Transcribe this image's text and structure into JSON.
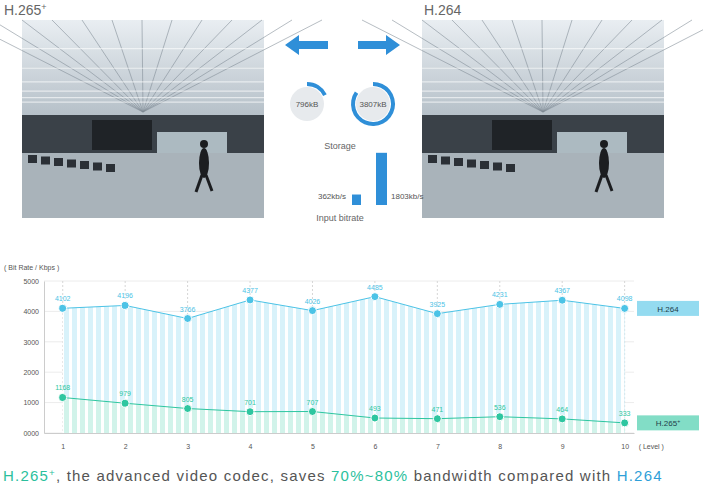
{
  "images": [
    {
      "label": "H.265+"
    },
    {
      "label": "H.264"
    }
  ],
  "chart_data": [
    {
      "type": "gauge",
      "title": "Storage",
      "values": [
        796,
        3807
      ],
      "value_labels": [
        "796kB",
        "3807kB"
      ],
      "ylim": [
        0,
        4500
      ],
      "color": "#2f8fd8",
      "data_labels": true,
      "tick_labels": false
    },
    {
      "type": "bar",
      "title": "Input bitrate",
      "values": [
        362,
        1803
      ],
      "value_labels": [
        "362kb/s",
        "1803kb/s"
      ],
      "ylim": [
        0,
        1900
      ],
      "color": "#2f8fd8",
      "data_labels": true,
      "tick_labels": false
    },
    {
      "type": "line",
      "ylabel": "( Bit Rate / Kbps )",
      "xlabel": "( Level )",
      "x": [
        1,
        2,
        3,
        4,
        5,
        6,
        7,
        8,
        9,
        10
      ],
      "xlim": [
        0.7,
        10.15
      ],
      "xticks": [
        1,
        2,
        3,
        4,
        5,
        6,
        7,
        8,
        9,
        10
      ],
      "ylim": [
        0,
        5000
      ],
      "yticks": [
        {
          "value": 0,
          "label": "0000"
        },
        1000,
        2000,
        3000,
        4000,
        5000
      ],
      "grid": true,
      "legend": "right",
      "data_labels": true,
      "series": [
        {
          "name": "H.264",
          "color": "#4cc3e6",
          "marker": "circle",
          "values": [
            4102,
            4196,
            3766,
            4377,
            4026,
            4485,
            3925,
            4231,
            4367,
            4098
          ]
        },
        {
          "name": "H.265+",
          "color": "#2ec6a0",
          "marker": "circle",
          "values": [
            1168,
            979,
            805,
            701,
            707,
            493,
            471,
            536,
            464,
            333
          ]
        }
      ]
    }
  ],
  "caption": [
    {
      "text": "H.265+",
      "color": "#2bbf9d"
    },
    {
      "text": ", the advanced video codec, saves ",
      "color": "#555555"
    },
    {
      "text": "70%~80%",
      "color": "#2bbf9d"
    },
    {
      "text": " bandwidth compared with ",
      "color": "#555555"
    },
    {
      "text": "H.264",
      "color": "#2f9fd8"
    }
  ]
}
